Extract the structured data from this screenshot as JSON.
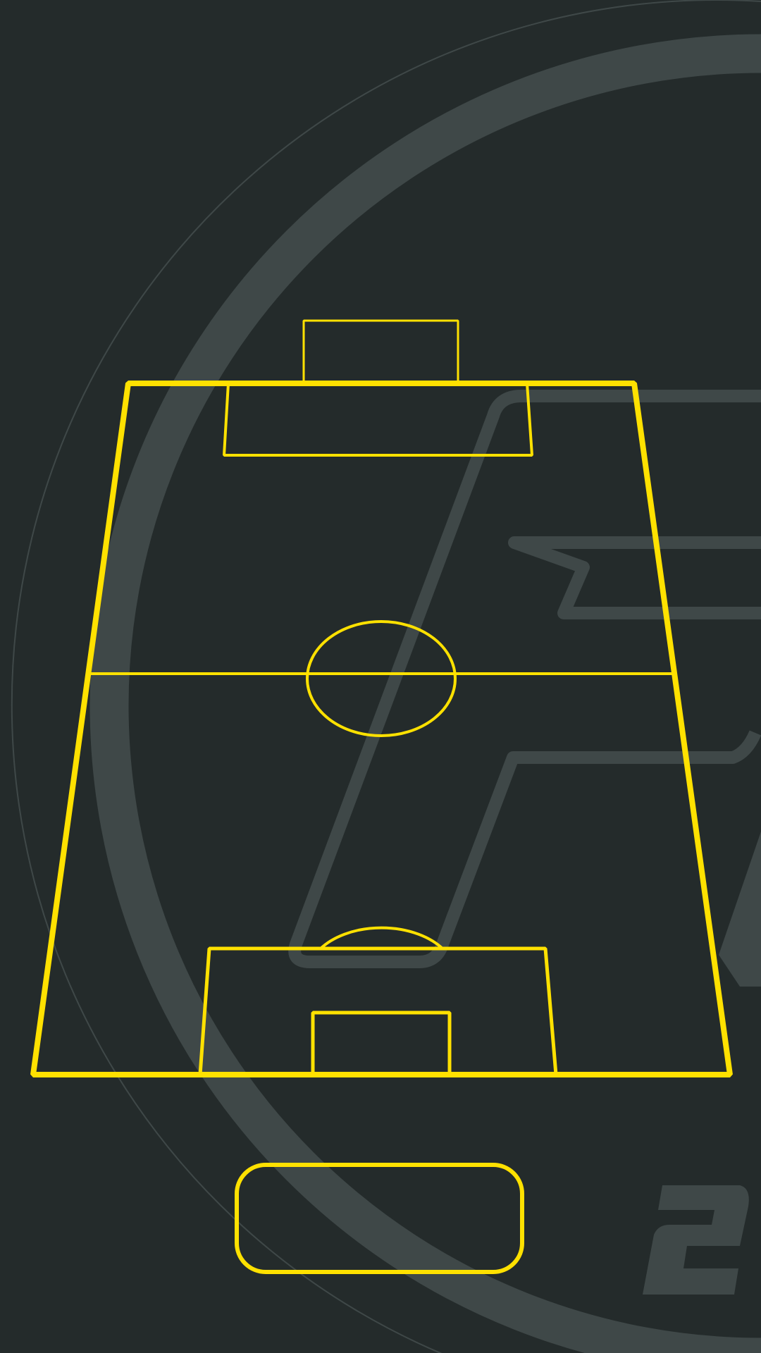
{
  "theme": {
    "background": "#242b2b",
    "accent": "#ffe100",
    "watermark": "#3f4848"
  },
  "screen": {
    "name": "formation-pitch"
  },
  "watermark": {
    "glyphs": [
      "F",
      "2"
    ]
  },
  "action_button": {
    "label": ""
  }
}
